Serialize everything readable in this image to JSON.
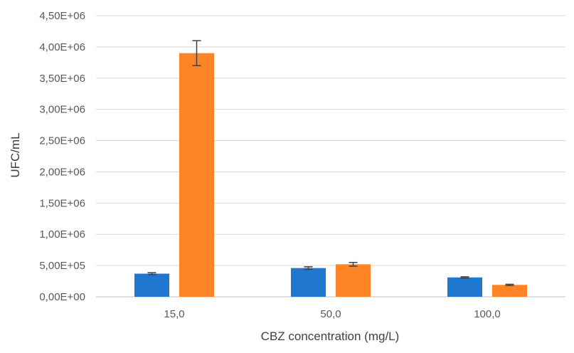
{
  "chart_data": {
    "type": "bar",
    "title": "",
    "xlabel": "CBZ concentration (mg/L)",
    "ylabel": "UFC/mL",
    "categories": [
      "15,0",
      "50,0",
      "100,0"
    ],
    "ylim": [
      0,
      4500000
    ],
    "yticks": [
      0,
      500000,
      1000000,
      1500000,
      2000000,
      2500000,
      3000000,
      3500000,
      4000000,
      4500000
    ],
    "ytick_labels": [
      "0,00E+00",
      "5,00E+05",
      "1,00E+06",
      "1,50E+06",
      "2,00E+06",
      "2,50E+06",
      "3,00E+06",
      "3,50E+06",
      "4,00E+06",
      "4,50E+06"
    ],
    "grid": true,
    "legend": "none",
    "series": [
      {
        "color": "#1f77d0",
        "values": [
          370000,
          460000,
          310000
        ],
        "errors": [
          15000,
          20000,
          10000
        ]
      },
      {
        "color": "#ff8426",
        "values": [
          3900000,
          520000,
          190000
        ],
        "errors": [
          200000,
          30000,
          10000
        ]
      }
    ]
  }
}
